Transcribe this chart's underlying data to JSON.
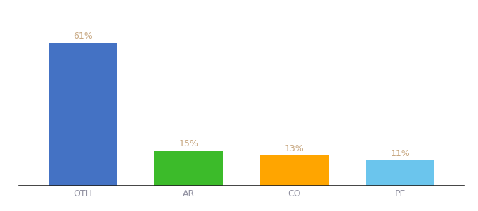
{
  "categories": [
    "OTH",
    "AR",
    "CO",
    "PE"
  ],
  "values": [
    61,
    15,
    13,
    11
  ],
  "bar_colors": [
    "#4472C4",
    "#3CBB2A",
    "#FFA500",
    "#6BC5ED"
  ],
  "value_labels": [
    "61%",
    "15%",
    "13%",
    "11%"
  ],
  "label_color": "#C8A882",
  "ylim": [
    0,
    72
  ],
  "background_color": "#ffffff",
  "label_fontsize": 9,
  "tick_fontsize": 9,
  "bar_width": 0.65,
  "xlim": [
    -0.6,
    3.6
  ]
}
